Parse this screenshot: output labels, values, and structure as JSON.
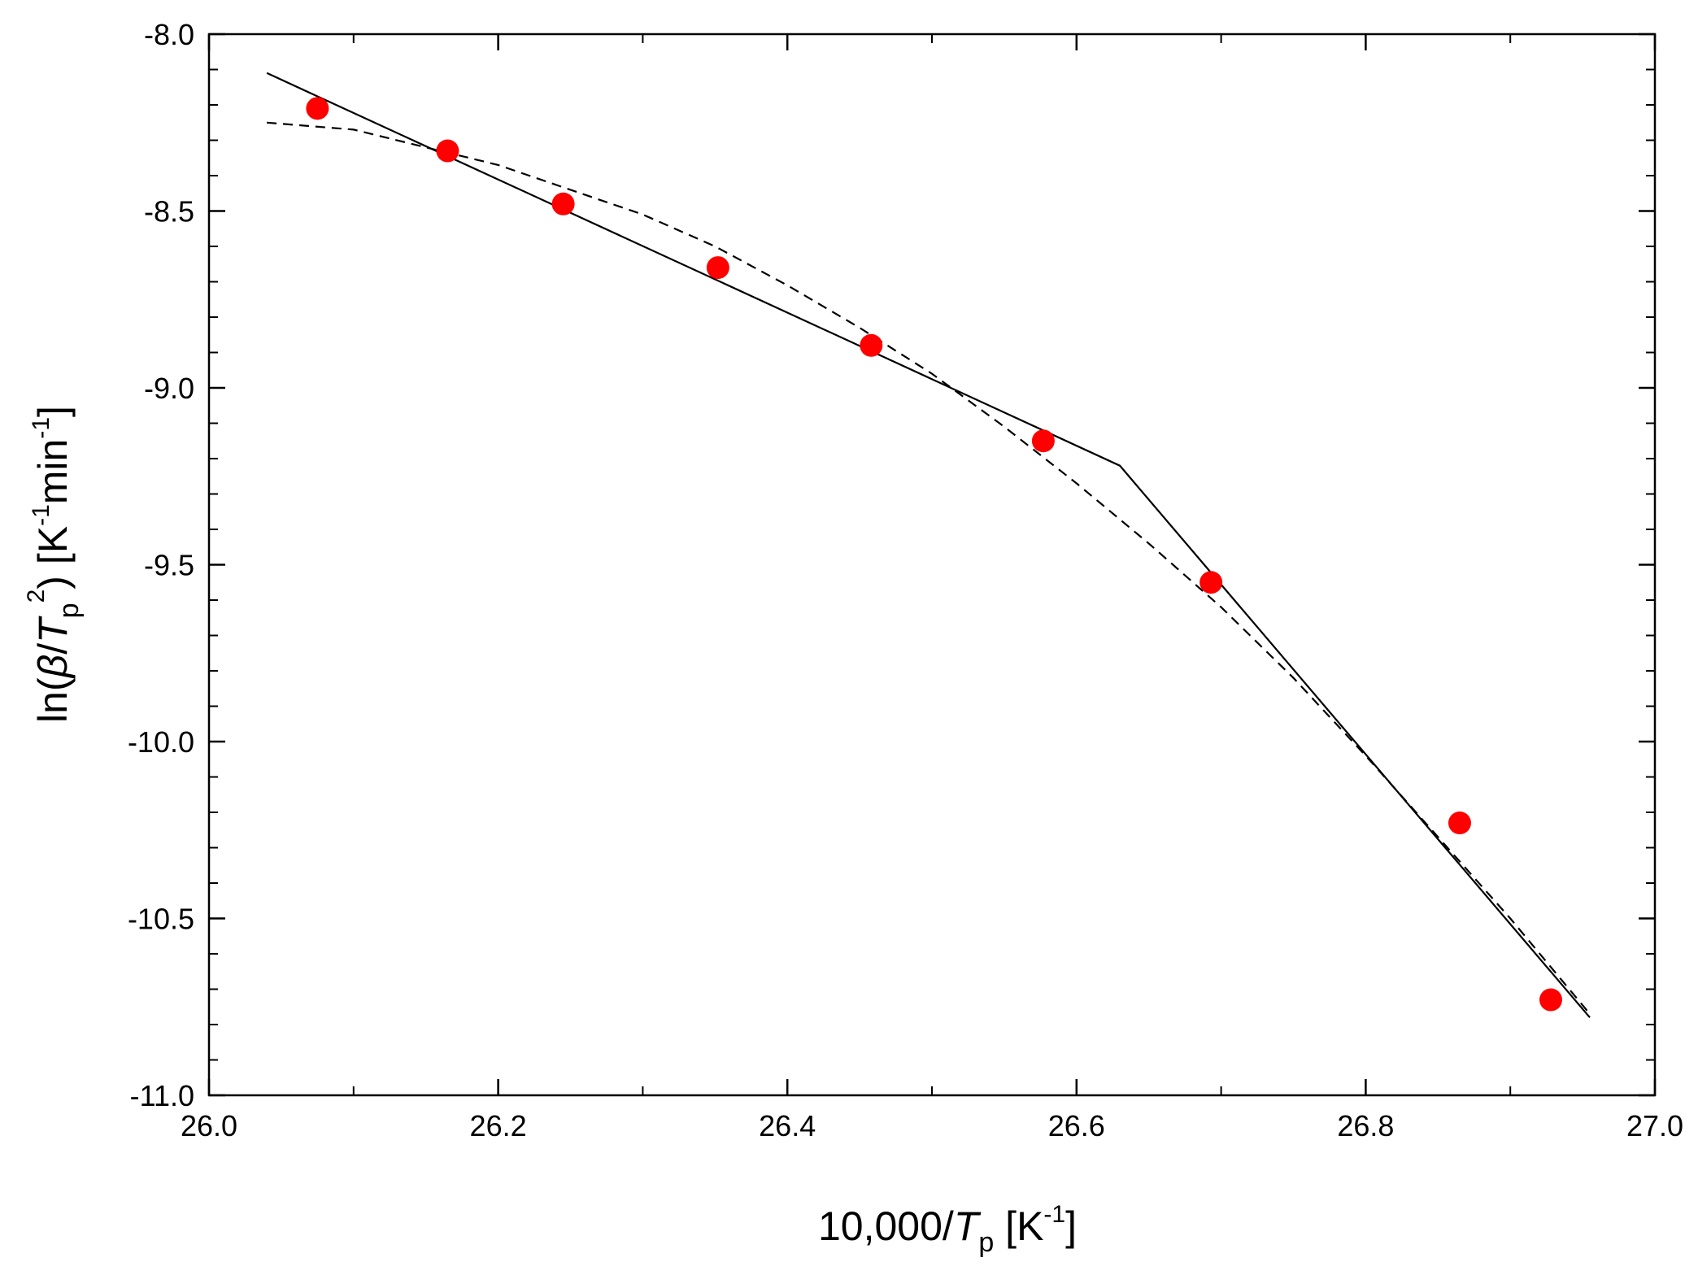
{
  "chart_data": {
    "type": "scatter",
    "title": "",
    "xlabel": {
      "prefix": "10,000/",
      "var": "T",
      "sub": "p",
      "unit_open": " [K",
      "unit_sup": "-1",
      "unit_close": "]"
    },
    "ylabel": {
      "prefix": "ln(",
      "beta": "β",
      "slash": "/",
      "var": "T",
      "sub": "p",
      "sup": "2",
      "close": ") [K",
      "unit_sup1": "-1",
      "unit_mid": "min",
      "unit_sup2": "-1",
      "unit_close": "]"
    },
    "xlim": [
      26.0,
      27.0
    ],
    "ylim": [
      -11.0,
      -8.0
    ],
    "xticks": [
      "26.0",
      "26.2",
      "26.4",
      "26.6",
      "26.8",
      "27.0"
    ],
    "yticks": [
      "-8.0",
      "-8.5",
      "-9.0",
      "-9.5",
      "-10.0",
      "-10.5",
      "-11.0"
    ],
    "grid": false,
    "colors": {
      "points": "#ff0000",
      "lines": "#000000"
    },
    "series": [
      {
        "style": "points",
        "x": [
          26.075,
          26.165,
          26.245,
          26.352,
          26.458,
          26.577,
          26.693,
          26.865,
          26.928
        ],
        "y": [
          -8.21,
          -8.33,
          -8.48,
          -8.66,
          -8.88,
          -9.15,
          -9.55,
          -10.23,
          -10.73
        ]
      },
      {
        "style": "solid-line",
        "x": [
          26.04,
          26.63,
          26.955
        ],
        "y": [
          -8.11,
          -9.22,
          -10.78
        ]
      },
      {
        "style": "dashed-line",
        "x": [
          26.04,
          26.1,
          26.15,
          26.2,
          26.25,
          26.3,
          26.35,
          26.4,
          26.45,
          26.5,
          26.55,
          26.6,
          26.65,
          26.7,
          26.75,
          26.8,
          26.85,
          26.9,
          26.955
        ],
        "y": [
          -8.25,
          -8.27,
          -8.32,
          -8.37,
          -8.44,
          -8.51,
          -8.6,
          -8.71,
          -8.83,
          -8.96,
          -9.11,
          -9.27,
          -9.44,
          -9.62,
          -9.82,
          -10.04,
          -10.27,
          -10.5,
          -10.77
        ]
      }
    ]
  }
}
